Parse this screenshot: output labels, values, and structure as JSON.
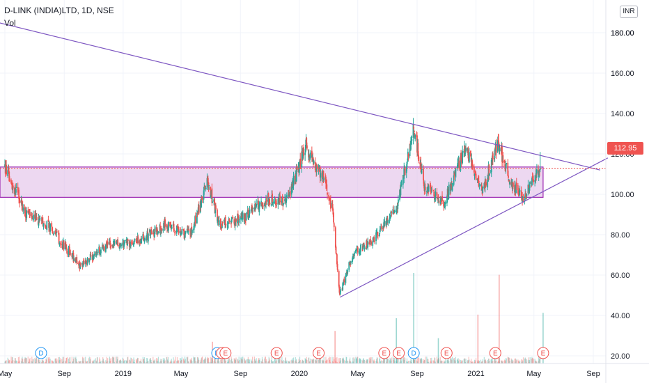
{
  "header": {
    "title": "D-LINK (INDIA)LTD, 1D, NSE",
    "volume_label": "Vol",
    "currency": "INR"
  },
  "last_price_label": "112.95",
  "colors": {
    "up": "#26a69a",
    "down": "#ef5350",
    "trendline": "#7e57c2",
    "zone_fill": "#e1bee7",
    "zone_border": "#9c27b0",
    "event_dividend": "#2196f3",
    "event_earnings": "#ef5350"
  },
  "chart_data": {
    "type": "candlestick",
    "title": "D-LINK (INDIA)LTD, 1D, NSE",
    "y_axis": {
      "ticks": [
        "20.00",
        "40.00",
        "60.00",
        "80.00",
        "100.00",
        "120.00",
        "140.00",
        "160.00",
        "180.00"
      ],
      "ylim": [
        10,
        183
      ]
    },
    "x_axis": {
      "ticks": [
        "May",
        "Sep",
        "2019",
        "May",
        "Sep",
        "2020",
        "May",
        "Sep",
        "2021",
        "May",
        "Sep"
      ],
      "range": [
        "2018-05",
        "2021-09"
      ]
    },
    "price_path": [
      {
        "date": "2018-05-01",
        "price": 113
      },
      {
        "date": "2018-06-15",
        "price": 90
      },
      {
        "date": "2018-08-01",
        "price": 84
      },
      {
        "date": "2018-10-05",
        "price": 64
      },
      {
        "date": "2018-11-20",
        "price": 74
      },
      {
        "date": "2019-02-01",
        "price": 77
      },
      {
        "date": "2019-04-01",
        "price": 85
      },
      {
        "date": "2019-05-20",
        "price": 80
      },
      {
        "date": "2019-06-25",
        "price": 106
      },
      {
        "date": "2019-07-20",
        "price": 85
      },
      {
        "date": "2019-09-10",
        "price": 89
      },
      {
        "date": "2019-10-25",
        "price": 98
      },
      {
        "date": "2019-12-05",
        "price": 96
      },
      {
        "date": "2020-01-15",
        "price": 124
      },
      {
        "date": "2020-02-25",
        "price": 105
      },
      {
        "date": "2020-03-10",
        "price": 92
      },
      {
        "date": "2020-03-25",
        "price": 50
      },
      {
        "date": "2020-04-20",
        "price": 70
      },
      {
        "date": "2020-06-05",
        "price": 78
      },
      {
        "date": "2020-07-20",
        "price": 93
      },
      {
        "date": "2020-08-25",
        "price": 133
      },
      {
        "date": "2020-09-15",
        "price": 105
      },
      {
        "date": "2020-10-25",
        "price": 95
      },
      {
        "date": "2020-12-10",
        "price": 122
      },
      {
        "date": "2021-01-15",
        "price": 102
      },
      {
        "date": "2021-02-15",
        "price": 126
      },
      {
        "date": "2021-03-15",
        "price": 105
      },
      {
        "date": "2021-04-10",
        "price": 98
      },
      {
        "date": "2021-05-15",
        "price": 112.95
      }
    ],
    "volume_spikes": [
      {
        "date": "2020-08-25",
        "value": 50
      },
      {
        "date": "2021-02-18",
        "value": 49
      },
      {
        "date": "2020-07-20",
        "value": 25
      },
      {
        "date": "2021-01-05",
        "value": 27
      },
      {
        "date": "2021-05-20",
        "value": 28
      },
      {
        "date": "2020-03-15",
        "value": 18
      },
      {
        "date": "2020-10-15",
        "value": 14
      },
      {
        "date": "2019-07-05",
        "value": 12
      }
    ],
    "last_price": 112.95,
    "annotations": {
      "trendlines": [
        {
          "from": {
            "date": "2018-04-01",
            "price": 186
          },
          "to": {
            "date": "2021-09-15",
            "price": 112
          }
        },
        {
          "from": {
            "date": "2020-03-25",
            "price": 49
          },
          "to": {
            "date": "2021-10-01",
            "price": 118
          }
        }
      ],
      "zone": {
        "from_date": "2018-05-01",
        "to_date": "2021-05-20",
        "low": 98.5,
        "high": 113.5
      },
      "events": [
        {
          "type": "D",
          "date": "2018-07-15"
        },
        {
          "type": "D",
          "date": "2019-07-15"
        },
        {
          "type": "E",
          "date": "2019-07-25"
        },
        {
          "type": "E",
          "date": "2019-08-01"
        },
        {
          "type": "E",
          "date": "2019-11-15"
        },
        {
          "type": "E",
          "date": "2020-02-10"
        },
        {
          "type": "E",
          "date": "2020-06-25"
        },
        {
          "type": "E",
          "date": "2020-07-25"
        },
        {
          "type": "D",
          "date": "2020-08-25"
        },
        {
          "type": "E",
          "date": "2020-11-01"
        },
        {
          "type": "E",
          "date": "2021-02-10"
        },
        {
          "type": "E",
          "date": "2021-05-20"
        }
      ]
    }
  }
}
